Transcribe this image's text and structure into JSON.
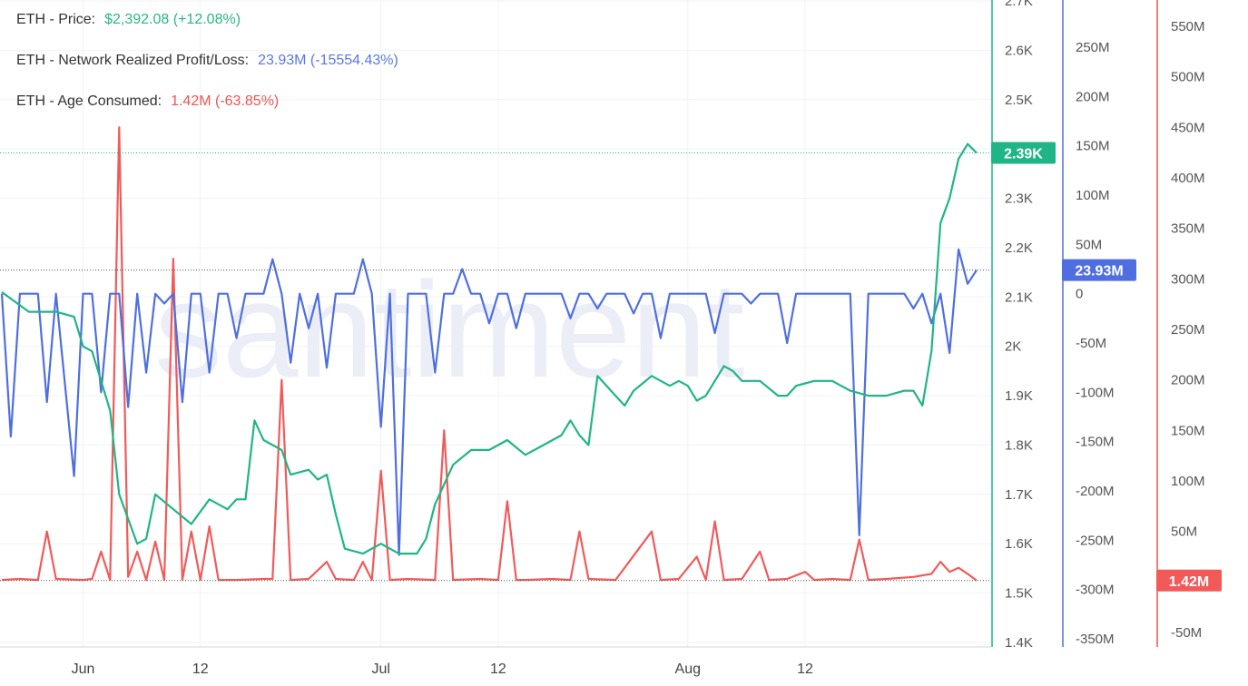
{
  "legend": [
    {
      "key": "ETH - Price:",
      "value": "$2,392.08 (+12.08%)",
      "color": "#26b884"
    },
    {
      "key": "ETH - Network Realized Profit/Loss:",
      "value": "23.93M (-15554.43%)",
      "color": "#5a78e6"
    },
    {
      "key": "ETH - Age Consumed:",
      "value": "1.42M (-63.85%)",
      "color": "#f05454"
    }
  ],
  "watermark": "santiment",
  "colors": {
    "price": "#20b586",
    "nrpl": "#4f6fe0",
    "age": "#f25a5a"
  },
  "chart_data": {
    "type": "line",
    "x_labels": [
      "Jun",
      "12",
      "Jul",
      "12",
      "Aug",
      "12"
    ],
    "axes": [
      {
        "name": "price",
        "ticks": [
          "2.7K",
          "2.6K",
          "2.5K",
          "2.4K",
          "2.3K",
          "2.2K",
          "2.1K",
          "2K",
          "1.9K",
          "1.8K",
          "1.7K",
          "1.6K",
          "1.5K",
          "1.4K"
        ],
        "range": [
          1400,
          2700
        ],
        "last_value_label": "2.39K"
      },
      {
        "name": "nrpl",
        "ticks": [
          "250M",
          "200M",
          "150M",
          "100M",
          "50M",
          "0",
          "-50M",
          "-100M",
          "-150M",
          "-200M",
          "-250M",
          "-300M",
          "-350M"
        ],
        "range": [
          -350000000,
          250000000
        ],
        "last_value_label": "23.93M"
      },
      {
        "name": "age",
        "ticks": [
          "550M",
          "500M",
          "450M",
          "400M",
          "350M",
          "300M",
          "250M",
          "200M",
          "150M",
          "100M",
          "50M",
          "-50M"
        ],
        "range": [
          -50000000,
          550000000
        ],
        "last_value_label": "1.42M"
      }
    ],
    "series": [
      {
        "name": "ETH - Price",
        "axis": "price",
        "points": [
          [
            0,
            2110
          ],
          [
            3,
            2070
          ],
          [
            6,
            2070
          ],
          [
            8,
            2060
          ],
          [
            9,
            2000
          ],
          [
            10,
            1990
          ],
          [
            12,
            1870
          ],
          [
            13,
            1700
          ],
          [
            15,
            1600
          ],
          [
            16,
            1610
          ],
          [
            17,
            1700
          ],
          [
            19,
            1670
          ],
          [
            21,
            1640
          ],
          [
            23,
            1690
          ],
          [
            25,
            1670
          ],
          [
            26,
            1690
          ],
          [
            27,
            1690
          ],
          [
            28,
            1850
          ],
          [
            29,
            1810
          ],
          [
            31,
            1790
          ],
          [
            32,
            1740
          ],
          [
            34,
            1750
          ],
          [
            35,
            1730
          ],
          [
            36,
            1740
          ],
          [
            37,
            1660
          ],
          [
            38,
            1590
          ],
          [
            40,
            1580
          ],
          [
            42,
            1600
          ],
          [
            43,
            1590
          ],
          [
            44,
            1580
          ],
          [
            46,
            1580
          ],
          [
            47,
            1610
          ],
          [
            48,
            1680
          ],
          [
            50,
            1760
          ],
          [
            52,
            1790
          ],
          [
            54,
            1790
          ],
          [
            56,
            1810
          ],
          [
            58,
            1780
          ],
          [
            60,
            1800
          ],
          [
            62,
            1820
          ],
          [
            63,
            1850
          ],
          [
            64,
            1820
          ],
          [
            65,
            1800
          ],
          [
            66,
            1940
          ],
          [
            68,
            1900
          ],
          [
            69,
            1880
          ],
          [
            70,
            1910
          ],
          [
            72,
            1940
          ],
          [
            74,
            1920
          ],
          [
            75,
            1930
          ],
          [
            76,
            1920
          ],
          [
            77,
            1890
          ],
          [
            78,
            1900
          ],
          [
            80,
            1960
          ],
          [
            81,
            1950
          ],
          [
            82,
            1930
          ],
          [
            84,
            1930
          ],
          [
            86,
            1900
          ],
          [
            87,
            1900
          ],
          [
            88,
            1920
          ],
          [
            90,
            1930
          ],
          [
            92,
            1930
          ],
          [
            93,
            1920
          ],
          [
            94,
            1910
          ],
          [
            96,
            1900
          ],
          [
            98,
            1900
          ],
          [
            100,
            1910
          ],
          [
            101,
            1910
          ],
          [
            102,
            1880
          ],
          [
            103,
            1990
          ],
          [
            104,
            2250
          ],
          [
            105,
            2300
          ],
          [
            106,
            2380
          ],
          [
            107,
            2410
          ],
          [
            108,
            2392.08
          ]
        ]
      },
      {
        "name": "ETH - Network Realized Profit/Loss",
        "axis": "nrpl",
        "points": [
          [
            0,
            0
          ],
          [
            1,
            -145000000
          ],
          [
            2,
            0
          ],
          [
            4,
            0
          ],
          [
            5,
            -110000000
          ],
          [
            6,
            0
          ],
          [
            8,
            -185000000
          ],
          [
            9,
            0
          ],
          [
            10,
            0
          ],
          [
            11,
            -100000000
          ],
          [
            12,
            0
          ],
          [
            13,
            0
          ],
          [
            14,
            -115000000
          ],
          [
            15,
            0
          ],
          [
            16,
            -80000000
          ],
          [
            17,
            0
          ],
          [
            18,
            -10000000
          ],
          [
            19,
            0
          ],
          [
            20,
            -110000000
          ],
          [
            21,
            0
          ],
          [
            22,
            0
          ],
          [
            23,
            -80000000
          ],
          [
            24,
            0
          ],
          [
            25,
            0
          ],
          [
            26,
            -45000000
          ],
          [
            27,
            0
          ],
          [
            28,
            0
          ],
          [
            29,
            0
          ],
          [
            30,
            35000000
          ],
          [
            31,
            0
          ],
          [
            32,
            -70000000
          ],
          [
            33,
            0
          ],
          [
            34,
            -35000000
          ],
          [
            35,
            0
          ],
          [
            36,
            -75000000
          ],
          [
            37,
            0
          ],
          [
            38,
            0
          ],
          [
            39,
            0
          ],
          [
            40,
            35000000
          ],
          [
            41,
            0
          ],
          [
            42,
            -135000000
          ],
          [
            43,
            0
          ],
          [
            44,
            -265000000
          ],
          [
            45,
            0
          ],
          [
            46,
            0
          ],
          [
            47,
            0
          ],
          [
            48,
            -80000000
          ],
          [
            49,
            0
          ],
          [
            50,
            0
          ],
          [
            51,
            25000000
          ],
          [
            52,
            0
          ],
          [
            53,
            0
          ],
          [
            54,
            -30000000
          ],
          [
            55,
            0
          ],
          [
            56,
            0
          ],
          [
            57,
            -35000000
          ],
          [
            58,
            0
          ],
          [
            60,
            0
          ],
          [
            62,
            0
          ],
          [
            63,
            -25000000
          ],
          [
            64,
            0
          ],
          [
            65,
            0
          ],
          [
            66,
            -15000000
          ],
          [
            67,
            0
          ],
          [
            68,
            0
          ],
          [
            69,
            0
          ],
          [
            70,
            -20000000
          ],
          [
            71,
            0
          ],
          [
            72,
            0
          ],
          [
            73,
            -45000000
          ],
          [
            74,
            0
          ],
          [
            76,
            0
          ],
          [
            78,
            0
          ],
          [
            79,
            -40000000
          ],
          [
            80,
            0
          ],
          [
            81,
            0
          ],
          [
            82,
            0
          ],
          [
            83,
            -10000000
          ],
          [
            84,
            0
          ],
          [
            85,
            0
          ],
          [
            86,
            0
          ],
          [
            87,
            -50000000
          ],
          [
            88,
            0
          ],
          [
            90,
            0
          ],
          [
            92,
            0
          ],
          [
            94,
            0
          ],
          [
            95,
            -245000000
          ],
          [
            96,
            0
          ],
          [
            98,
            0
          ],
          [
            100,
            0
          ],
          [
            101,
            -15000000
          ],
          [
            102,
            0
          ],
          [
            103,
            -30000000
          ],
          [
            104,
            0
          ],
          [
            105,
            -60000000
          ],
          [
            106,
            45000000
          ],
          [
            107,
            10000000
          ],
          [
            108,
            23930000
          ]
        ]
      },
      {
        "name": "ETH - Age Consumed",
        "axis": "age",
        "points": [
          [
            0,
            2000000
          ],
          [
            2,
            3000000
          ],
          [
            4,
            2000000
          ],
          [
            5,
            50000000
          ],
          [
            6,
            3000000
          ],
          [
            9,
            2000000
          ],
          [
            10,
            3000000
          ],
          [
            11,
            30000000
          ],
          [
            12,
            2000000
          ],
          [
            13,
            450000000
          ],
          [
            14,
            5000000
          ],
          [
            15,
            30000000
          ],
          [
            16,
            2000000
          ],
          [
            17,
            40000000
          ],
          [
            18,
            2000000
          ],
          [
            19,
            320000000
          ],
          [
            20,
            2000000
          ],
          [
            21,
            50000000
          ],
          [
            22,
            2000000
          ],
          [
            23,
            55000000
          ],
          [
            24,
            2000000
          ],
          [
            26,
            2000000
          ],
          [
            29,
            3000000
          ],
          [
            30,
            3000000
          ],
          [
            31,
            200000000
          ],
          [
            32,
            2000000
          ],
          [
            34,
            3000000
          ],
          [
            36,
            20000000
          ],
          [
            37,
            3000000
          ],
          [
            39,
            2000000
          ],
          [
            40,
            20000000
          ],
          [
            41,
            2000000
          ],
          [
            42,
            110000000
          ],
          [
            43,
            2000000
          ],
          [
            45,
            3000000
          ],
          [
            48,
            2000000
          ],
          [
            49,
            150000000
          ],
          [
            50,
            2000000
          ],
          [
            53,
            3000000
          ],
          [
            55,
            2000000
          ],
          [
            56,
            80000000
          ],
          [
            57,
            2000000
          ],
          [
            58,
            2000000
          ],
          [
            61,
            3000000
          ],
          [
            63,
            2000000
          ],
          [
            64,
            50000000
          ],
          [
            65,
            3000000
          ],
          [
            68,
            2000000
          ],
          [
            72,
            50000000
          ],
          [
            73,
            2000000
          ],
          [
            75,
            3000000
          ],
          [
            77,
            25000000
          ],
          [
            78,
            2000000
          ],
          [
            79,
            60000000
          ],
          [
            80,
            2000000
          ],
          [
            82,
            3000000
          ],
          [
            84,
            30000000
          ],
          [
            85,
            2000000
          ],
          [
            87,
            3000000
          ],
          [
            89,
            10000000
          ],
          [
            90,
            2000000
          ],
          [
            92,
            3000000
          ],
          [
            94,
            2000000
          ],
          [
            95,
            42000000
          ],
          [
            96,
            2000000
          ],
          [
            98,
            3000000
          ],
          [
            101,
            5000000
          ],
          [
            103,
            8000000
          ],
          [
            104,
            20000000
          ],
          [
            105,
            10000000
          ],
          [
            106,
            14000000
          ],
          [
            107,
            8000000
          ],
          [
            108,
            1420000
          ]
        ]
      }
    ]
  }
}
